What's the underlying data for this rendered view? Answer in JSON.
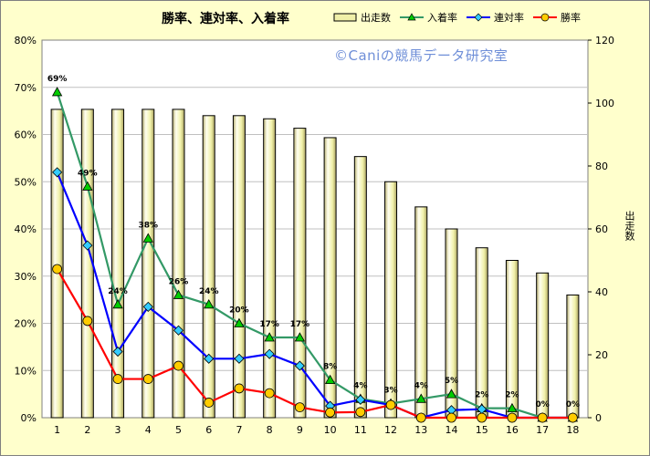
{
  "chart_data": {
    "type": "bar+line",
    "title": "勝率、連対率、入着率",
    "watermark": "©Caniの競馬データ研究室",
    "categories": [
      "1",
      "2",
      "3",
      "4",
      "5",
      "6",
      "7",
      "8",
      "9",
      "10",
      "11",
      "12",
      "13",
      "14",
      "15",
      "16",
      "17",
      "18"
    ],
    "y_left": {
      "ylim": [
        0,
        80
      ],
      "unit": "%",
      "ticks": [
        "0%",
        "10%",
        "20%",
        "30%",
        "40%",
        "50%",
        "60%",
        "70%",
        "80%"
      ]
    },
    "y_right": {
      "label": "出走数",
      "ylim": [
        0,
        120
      ],
      "ticks": [
        "0",
        "20",
        "40",
        "60",
        "80",
        "100",
        "120"
      ]
    },
    "bars": {
      "name": "出走数",
      "axis": "right",
      "values": [
        98,
        98,
        98,
        98,
        98,
        96,
        96,
        95,
        92,
        89,
        83,
        75,
        67,
        60,
        54,
        50,
        46,
        39
      ]
    },
    "series": [
      {
        "name": "入着率",
        "axis": "left",
        "marker": "triangle",
        "values": [
          69,
          49,
          24,
          38,
          26,
          24,
          20,
          17,
          17,
          8,
          4,
          3,
          4,
          5,
          2,
          2,
          0,
          0
        ],
        "labels": [
          "69%",
          "49%",
          "24%",
          "38%",
          "26%",
          "24%",
          "20%",
          "17%",
          "17%",
          "8%",
          "4%",
          "3%",
          "4%",
          "5%",
          "2%",
          "2%",
          "0%",
          "0%"
        ]
      },
      {
        "name": "連対率",
        "axis": "left",
        "marker": "diamond",
        "values": [
          52,
          36.5,
          14,
          23.5,
          18.5,
          12.5,
          12.5,
          13.5,
          11,
          2.5,
          3.8,
          2.7,
          0,
          1.6,
          1.8,
          0,
          0,
          0
        ]
      },
      {
        "name": "勝率",
        "axis": "left",
        "marker": "circle",
        "values": [
          31.5,
          20.5,
          8.2,
          8.2,
          11,
          3.2,
          6.2,
          5.2,
          2.2,
          1.1,
          1.2,
          2.7,
          0,
          0,
          0,
          0,
          0,
          0
        ]
      }
    ],
    "colors": {
      "bars_fill": "#f0f0a8",
      "bars_edge": "#000000",
      "entry": "#339966",
      "entry_marker": "#00cc00",
      "place": "#0000ff",
      "place_marker": "#33ccff",
      "win": "#ff0000",
      "win_marker": "#ffcc00",
      "plot_bg": "#ffffff",
      "chart_bg": "#ffffcc",
      "grid": "#c0c0c0"
    },
    "grid": true,
    "legend_position": "top-right"
  }
}
